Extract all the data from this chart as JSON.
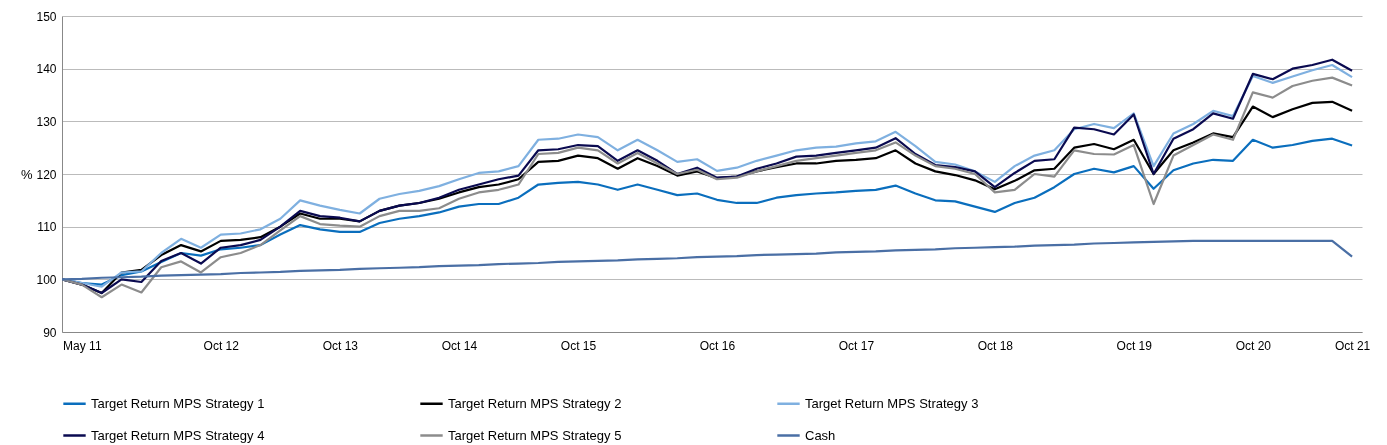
{
  "chart_data": {
    "type": "line",
    "ylabel": "%",
    "ylim": [
      90,
      150
    ],
    "yticks": [
      90,
      100,
      110,
      120,
      130,
      140,
      150
    ],
    "grid": "y",
    "legend": "bottom",
    "categories": [
      null,
      "May 11",
      null,
      null,
      null,
      null,
      null,
      null,
      "Oct 12",
      null,
      null,
      null,
      null,
      null,
      "Oct 13",
      null,
      null,
      null,
      null,
      null,
      "Oct 14",
      null,
      null,
      null,
      null,
      null,
      "Oct 15",
      null,
      null,
      null,
      null,
      null,
      null,
      "Oct 16",
      null,
      null,
      null,
      null,
      null,
      null,
      "Oct  17",
      null,
      null,
      null,
      null,
      null,
      null,
      "Oct 18",
      null,
      null,
      null,
      null,
      null,
      null,
      "Oct 19",
      null,
      null,
      null,
      null,
      null,
      "Oct 20",
      null,
      null,
      null,
      null,
      "Oct  21"
    ],
    "series": [
      {
        "name": "Target Return MPS Strategy 1",
        "color": "#0a6ebd",
        "values": [
          100,
          99.3,
          99.0,
          100.8,
          101.5,
          103.3,
          105,
          104.5,
          105.7,
          106,
          106.5,
          108.5,
          110.3,
          109.5,
          109,
          109,
          110.7,
          111.5,
          112,
          112.7,
          113.8,
          114.3,
          114.3,
          115.5,
          118,
          118.3,
          118.5,
          118,
          117,
          118,
          117,
          116,
          116.3,
          115.1,
          114.5,
          114.5,
          115.5,
          116,
          116.3,
          116.5,
          116.8,
          117,
          117.8,
          116.3,
          115,
          114.8,
          113.8,
          112.8,
          114.5,
          115.5,
          117.5,
          120,
          121,
          120.3,
          121.5,
          117.2,
          120.7,
          122,
          122.7,
          122.5,
          126.5,
          125,
          125.5,
          126.3,
          126.7,
          125.4
        ]
      },
      {
        "name": "Target Return MPS Strategy 2",
        "color": "#000000",
        "values": [
          100,
          99,
          97.4,
          101.3,
          101.8,
          104.6,
          106.5,
          105.3,
          107.3,
          107.5,
          108,
          110,
          112.5,
          111.5,
          111.5,
          111,
          113,
          114,
          114.5,
          115.3,
          116.5,
          117.5,
          118,
          119,
          122.3,
          122.5,
          123.5,
          123,
          121,
          123,
          121.5,
          119.7,
          120.5,
          119.2,
          119.5,
          120.5,
          121.3,
          122,
          122,
          122.5,
          122.7,
          123,
          124.5,
          122,
          120.5,
          119.8,
          118.8,
          117.1,
          118.7,
          120.7,
          121,
          125,
          125.7,
          124.7,
          126.5,
          120,
          124.5,
          126,
          127.7,
          127,
          132.8,
          130.8,
          132.3,
          133.5,
          133.7,
          132
        ]
      },
      {
        "name": "Target Return MPS Strategy 3",
        "color": "#7fb0e0",
        "values": [
          100,
          99.3,
          98.6,
          101.3,
          101.5,
          105,
          107.7,
          106,
          108.5,
          108.7,
          109.5,
          111.5,
          115,
          114,
          113.2,
          112.5,
          115.3,
          116.2,
          116.8,
          117.7,
          119,
          120.2,
          120.5,
          121.5,
          126.5,
          126.7,
          127.5,
          127,
          124.5,
          126.5,
          124.5,
          122.3,
          122.8,
          120.6,
          121.2,
          122.5,
          123.5,
          124.5,
          125,
          125.2,
          125.8,
          126.2,
          128,
          125.3,
          122.3,
          121.8,
          120.5,
          118.5,
          121.5,
          123.5,
          124.5,
          128.5,
          129.5,
          128.7,
          131.5,
          121.5,
          127.7,
          129.5,
          132,
          131,
          138.6,
          137.3,
          138.5,
          139.7,
          140.7,
          138.4
        ]
      },
      {
        "name": "Target Return MPS Strategy 4",
        "color": "#0a0a50",
        "values": [
          100,
          99,
          97.4,
          100,
          99.5,
          103.5,
          105,
          103,
          106,
          106.5,
          107.5,
          110,
          113,
          112,
          111.7,
          111,
          113,
          114,
          114.5,
          115.5,
          117,
          118,
          119,
          119.7,
          124.5,
          124.7,
          125.5,
          125.3,
          122.5,
          124.5,
          122.5,
          120,
          121.2,
          119.3,
          119.5,
          121,
          122,
          123.3,
          123.5,
          124,
          124.5,
          125,
          126.8,
          123.8,
          121.7,
          121.3,
          120.5,
          117.5,
          120.2,
          122.5,
          122.8,
          128.8,
          128.5,
          127.5,
          131.3,
          120,
          126.7,
          128.5,
          131.5,
          130.5,
          139,
          138,
          140,
          140.7,
          141.7,
          139.6
        ]
      },
      {
        "name": "Target Return MPS Strategy 5",
        "color": "#8c8c8c",
        "values": [
          100,
          99,
          96.6,
          99,
          97.5,
          102.3,
          103.4,
          101.3,
          104.2,
          105,
          106.5,
          109.3,
          112,
          110.5,
          110.2,
          110,
          112,
          113,
          113,
          113.5,
          115.3,
          116.5,
          117,
          118,
          123.8,
          124,
          125,
          124.5,
          122,
          124,
          122,
          120,
          120.8,
          119,
          119.3,
          120.5,
          121.5,
          122.5,
          123,
          123.5,
          124,
          124.5,
          126,
          123.5,
          121.5,
          121,
          120,
          116.5,
          117,
          120,
          119.5,
          124.5,
          123.8,
          123.7,
          125.5,
          114.3,
          123.5,
          125.5,
          127.5,
          126.5,
          135.5,
          134.5,
          136.7,
          137.7,
          138.3,
          136.8
        ]
      },
      {
        "name": "Cash",
        "color": "#4a6fa5",
        "values": [
          100,
          100.1,
          100.3,
          100.4,
          100.5,
          100.7,
          100.8,
          100.9,
          101.0,
          101.2,
          101.3,
          101.4,
          101.6,
          101.7,
          101.8,
          102.0,
          102.1,
          102.2,
          102.3,
          102.5,
          102.6,
          102.7,
          102.9,
          103.0,
          103.1,
          103.3,
          103.4,
          103.5,
          103.6,
          103.8,
          103.9,
          104.0,
          104.2,
          104.3,
          104.4,
          104.6,
          104.7,
          104.8,
          104.9,
          105.1,
          105.2,
          105.3,
          105.5,
          105.6,
          105.7,
          105.9,
          106.0,
          106.1,
          106.2,
          106.4,
          106.5,
          106.6,
          106.8,
          106.9,
          107.0,
          107.1,
          107.2,
          107.3,
          107.3,
          107.3,
          107.3,
          107.3,
          107.3,
          107.3,
          107.3,
          104.3
        ]
      }
    ]
  }
}
